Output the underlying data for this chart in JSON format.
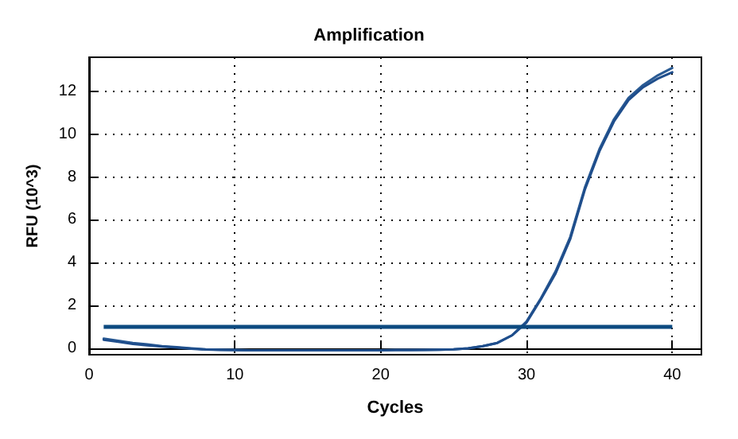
{
  "chart_data": {
    "type": "line",
    "title": "Amplification",
    "xlabel": "Cycles",
    "ylabel": "RFU (10^3)",
    "x": [
      1,
      2,
      3,
      4,
      5,
      6,
      7,
      8,
      9,
      10,
      11,
      12,
      13,
      14,
      15,
      16,
      17,
      18,
      19,
      20,
      21,
      22,
      23,
      24,
      25,
      26,
      27,
      28,
      29,
      30,
      31,
      32,
      33,
      34,
      35,
      36,
      37,
      38,
      39,
      40
    ],
    "series": [
      {
        "color": "#2a5b94",
        "values": [
          0.45,
          0.35,
          0.25,
          0.18,
          0.1,
          0.05,
          0.0,
          -0.05,
          -0.07,
          -0.08,
          -0.1,
          -0.1,
          -0.1,
          -0.1,
          -0.1,
          -0.1,
          -0.1,
          -0.1,
          -0.1,
          -0.1,
          -0.08,
          -0.08,
          -0.08,
          -0.07,
          -0.05,
          0.0,
          0.1,
          0.25,
          0.6,
          1.25,
          2.35,
          3.6,
          5.2,
          7.5,
          9.3,
          10.7,
          11.7,
          12.3,
          12.75,
          13.1
        ]
      },
      {
        "color": "#1f4e8c",
        "values": [
          0.4,
          0.3,
          0.2,
          0.14,
          0.08,
          0.03,
          -0.02,
          -0.06,
          -0.08,
          -0.09,
          -0.1,
          -0.1,
          -0.1,
          -0.1,
          -0.1,
          -0.1,
          -0.1,
          -0.1,
          -0.1,
          -0.1,
          -0.09,
          -0.09,
          -0.08,
          -0.07,
          -0.05,
          0.0,
          0.1,
          0.25,
          0.6,
          1.2,
          2.3,
          3.5,
          5.1,
          7.4,
          9.2,
          10.6,
          11.6,
          12.2,
          12.6,
          12.9
        ]
      }
    ],
    "ref_lines": [
      {
        "axis": "y",
        "value": 1.0,
        "color": "#0d4a80"
      }
    ],
    "xlim": [
      0,
      42
    ],
    "xticks": [
      0,
      10,
      20,
      30,
      40
    ],
    "ylim": [
      -0.3,
      13.6
    ],
    "yticks": [
      0,
      2,
      4,
      6,
      8,
      10,
      12
    ],
    "grid": true,
    "marker": "none",
    "line_style": "solid"
  }
}
